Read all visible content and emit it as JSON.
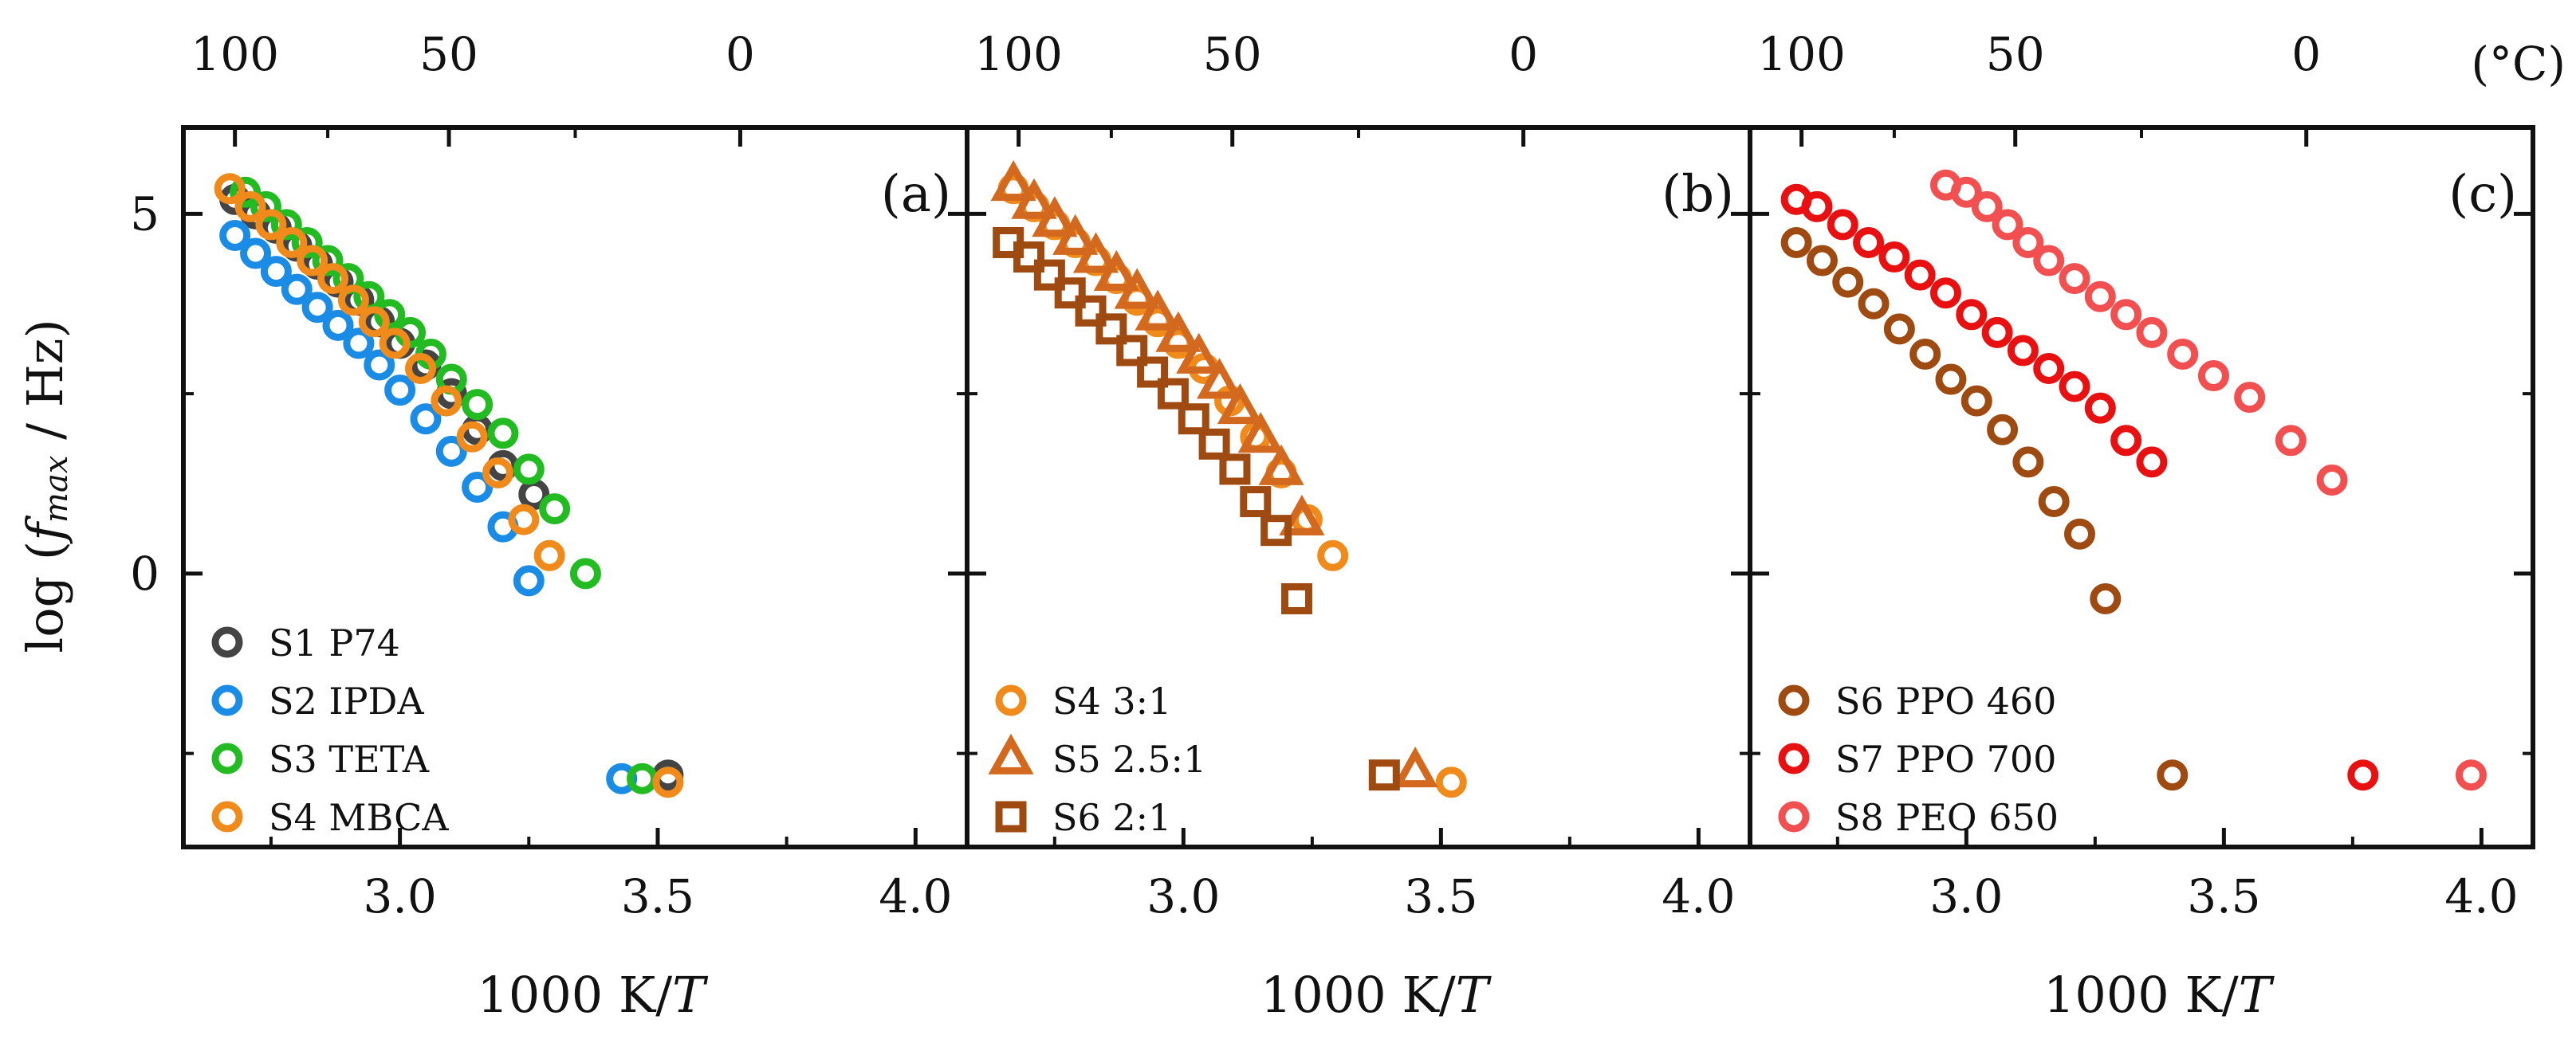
{
  "figure": {
    "ylabel_prefix": "log (",
    "ylabel_var": "f",
    "ylabel_sub": "max",
    "ylabel_suffix": " / Hz)",
    "top_unit": "(°C)"
  },
  "chart_data": [
    {
      "type": "scatter",
      "panel_label": "(a)",
      "xlabel_prefix": "1000 K/",
      "xlabel_var": "T",
      "xlim": [
        2.58,
        4.1
      ],
      "ylim": [
        -3.8,
        6.2
      ],
      "x_ticks": [
        "3.0",
        "3.5",
        "4.0"
      ],
      "y_ticks": [
        "0",
        "5"
      ],
      "top_ticks": [
        "100",
        "50",
        "0"
      ],
      "legend_position": "bottom-left",
      "series": [
        {
          "name": "S1 P74",
          "color": "#444444",
          "marker": "circle",
          "x": [
            2.68,
            2.72,
            2.76,
            2.8,
            2.84,
            2.88,
            2.92,
            2.96,
            3.0,
            3.05,
            3.1,
            3.15,
            3.2,
            3.26,
            3.52
          ],
          "y": [
            5.2,
            5.0,
            4.8,
            4.55,
            4.3,
            4.05,
            3.8,
            3.5,
            3.2,
            2.9,
            2.5,
            2.0,
            1.5,
            1.1,
            -2.8
          ]
        },
        {
          "name": "S2 IPDA",
          "color": "#1a8ce6",
          "marker": "circle",
          "x": [
            2.68,
            2.72,
            2.76,
            2.8,
            2.84,
            2.88,
            2.92,
            2.96,
            3.0,
            3.05,
            3.1,
            3.15,
            3.2,
            3.25,
            3.43
          ],
          "y": [
            4.7,
            4.45,
            4.2,
            3.95,
            3.7,
            3.45,
            3.2,
            2.9,
            2.55,
            2.15,
            1.7,
            1.2,
            0.65,
            -0.1,
            -2.85
          ]
        },
        {
          "name": "S3 TETA",
          "color": "#22bb22",
          "marker": "circle",
          "x": [
            2.7,
            2.74,
            2.78,
            2.82,
            2.86,
            2.9,
            2.94,
            2.98,
            3.02,
            3.06,
            3.1,
            3.15,
            3.2,
            3.25,
            3.3,
            3.36,
            3.47
          ],
          "y": [
            5.3,
            5.1,
            4.85,
            4.6,
            4.35,
            4.1,
            3.85,
            3.6,
            3.35,
            3.05,
            2.7,
            2.35,
            1.95,
            1.45,
            0.9,
            0.0,
            -2.85
          ]
        },
        {
          "name": "S4 MBCA",
          "color": "#f08a1a",
          "marker": "circle",
          "x": [
            2.67,
            2.71,
            2.75,
            2.79,
            2.83,
            2.87,
            2.91,
            2.95,
            2.99,
            3.04,
            3.09,
            3.14,
            3.19,
            3.24,
            3.29,
            3.52
          ],
          "y": [
            5.35,
            5.1,
            4.85,
            4.6,
            4.35,
            4.1,
            3.8,
            3.5,
            3.2,
            2.85,
            2.4,
            1.9,
            1.4,
            0.75,
            0.25,
            -2.9
          ]
        }
      ]
    },
    {
      "type": "scatter",
      "panel_label": "(b)",
      "xlabel_prefix": "1000 K/",
      "xlabel_var": "T",
      "xlim": [
        2.58,
        4.1
      ],
      "ylim": [
        -3.8,
        6.2
      ],
      "x_ticks": [
        "3.0",
        "3.5",
        "4.0"
      ],
      "y_ticks": [
        "0",
        "5"
      ],
      "top_ticks": [
        "100",
        "50",
        "0"
      ],
      "legend_position": "bottom-left",
      "series": [
        {
          "name": "S4 3:1",
          "color": "#f08a1a",
          "marker": "circle",
          "x": [
            2.67,
            2.71,
            2.75,
            2.79,
            2.83,
            2.87,
            2.91,
            2.95,
            2.99,
            3.04,
            3.09,
            3.14,
            3.19,
            3.24,
            3.29,
            3.52
          ],
          "y": [
            5.35,
            5.1,
            4.85,
            4.6,
            4.35,
            4.1,
            3.8,
            3.5,
            3.2,
            2.85,
            2.4,
            1.9,
            1.4,
            0.75,
            0.25,
            -2.9
          ]
        },
        {
          "name": "S5 2.5:1",
          "color": "#d2691e",
          "marker": "triangle",
          "x": [
            2.67,
            2.71,
            2.75,
            2.79,
            2.83,
            2.87,
            2.91,
            2.95,
            2.99,
            3.03,
            3.07,
            3.11,
            3.15,
            3.19,
            3.23,
            3.45
          ],
          "y": [
            5.4,
            5.15,
            4.9,
            4.65,
            4.4,
            4.15,
            3.9,
            3.6,
            3.3,
            3.0,
            2.65,
            2.3,
            1.9,
            1.45,
            0.75,
            -2.75
          ]
        },
        {
          "name": "S6 2:1",
          "color": "#9e4a10",
          "marker": "square",
          "x": [
            2.66,
            2.7,
            2.74,
            2.78,
            2.82,
            2.86,
            2.9,
            2.94,
            2.98,
            3.02,
            3.06,
            3.1,
            3.14,
            3.18,
            3.22,
            3.39
          ],
          "y": [
            4.6,
            4.4,
            4.15,
            3.9,
            3.65,
            3.4,
            3.1,
            2.8,
            2.5,
            2.15,
            1.8,
            1.45,
            1.0,
            0.6,
            -0.35,
            -2.8
          ]
        }
      ]
    },
    {
      "type": "scatter",
      "panel_label": "(c)",
      "xlabel_prefix": "1000 K/",
      "xlabel_var": "T",
      "xlim": [
        2.58,
        4.1
      ],
      "ylim": [
        -3.8,
        6.2
      ],
      "x_ticks": [
        "3.0",
        "3.5",
        "4.0"
      ],
      "y_ticks": [
        "0",
        "5"
      ],
      "top_ticks": [
        "100",
        "50",
        "0"
      ],
      "legend_position": "bottom-left",
      "series": [
        {
          "name": "S6 PPO 460",
          "color": "#9e4a10",
          "marker": "circle",
          "x": [
            2.67,
            2.72,
            2.77,
            2.82,
            2.87,
            2.92,
            2.97,
            3.02,
            3.07,
            3.12,
            3.17,
            3.22,
            3.27,
            3.4
          ],
          "y": [
            4.6,
            4.35,
            4.05,
            3.75,
            3.4,
            3.05,
            2.7,
            2.4,
            2.0,
            1.55,
            1.0,
            0.55,
            -0.35,
            -2.8
          ]
        },
        {
          "name": "S7 PPO 700",
          "color": "#e81010",
          "marker": "circle",
          "x": [
            2.67,
            2.71,
            2.76,
            2.81,
            2.86,
            2.91,
            2.96,
            3.01,
            3.06,
            3.11,
            3.16,
            3.21,
            3.26,
            3.31,
            3.36,
            3.77
          ],
          "y": [
            5.2,
            5.1,
            4.85,
            4.6,
            4.4,
            4.15,
            3.9,
            3.6,
            3.35,
            3.1,
            2.85,
            2.6,
            2.3,
            1.85,
            1.55,
            -2.8
          ]
        },
        {
          "name": "S8 PEO 650",
          "color": "#f25050",
          "marker": "circle",
          "x": [
            2.96,
            3.0,
            3.04,
            3.08,
            3.12,
            3.16,
            3.21,
            3.26,
            3.31,
            3.36,
            3.42,
            3.48,
            3.55,
            3.63,
            3.71,
            3.98
          ],
          "y": [
            5.4,
            5.3,
            5.1,
            4.85,
            4.6,
            4.35,
            4.1,
            3.85,
            3.6,
            3.35,
            3.05,
            2.75,
            2.45,
            1.85,
            1.3,
            -2.8
          ]
        }
      ]
    }
  ]
}
